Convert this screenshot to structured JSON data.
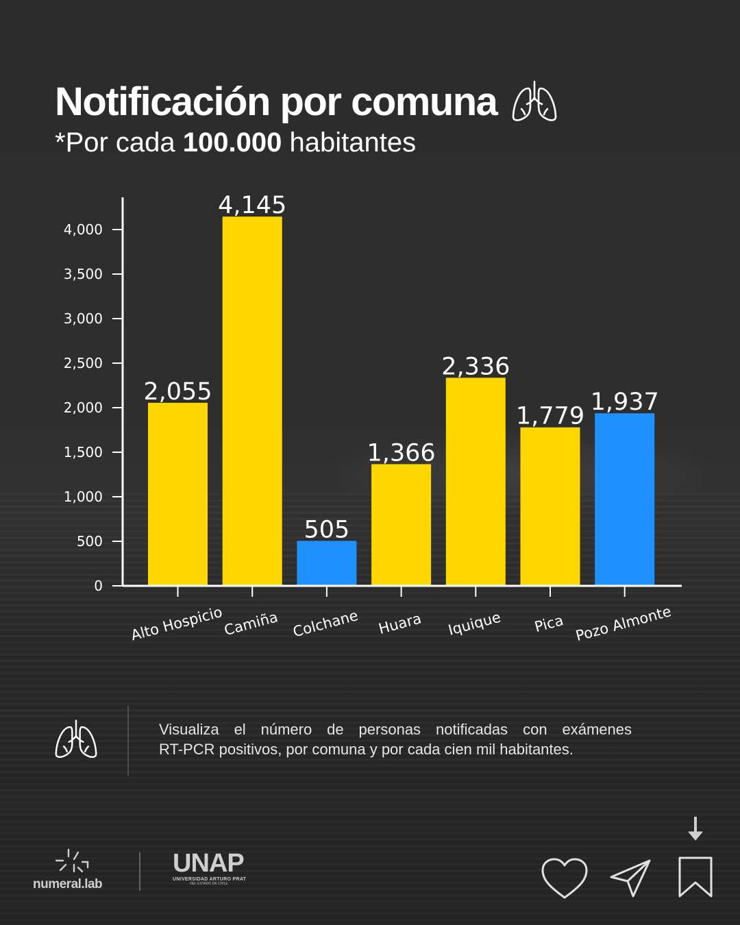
{
  "header": {
    "title": "Notificación por comuna",
    "subtitle_prefix": "*Por cada ",
    "subtitle_bold": "100.000",
    "subtitle_suffix": " habitantes"
  },
  "chart_data": {
    "type": "bar",
    "title": "Notificación por comuna",
    "subtitle": "*Por cada 100.000 habitantes",
    "xlabel": "",
    "ylabel": "",
    "categories": [
      "Alto Hospicio",
      "Camiña",
      "Colchane",
      "Huara",
      "Iquique",
      "Pica",
      "Pozo Almonte"
    ],
    "values": [
      2055,
      4145,
      505,
      1366,
      2336,
      1779,
      1937
    ],
    "value_labels": [
      "2,055",
      "4,145",
      "505",
      "1,366",
      "2,336",
      "1,779",
      "1,937"
    ],
    "bar_colors": [
      "#FFD700",
      "#FFD700",
      "#1E90FF",
      "#FFD700",
      "#FFD700",
      "#FFD700",
      "#1E90FF"
    ],
    "ylim": [
      0,
      4300
    ],
    "yticks": [
      0,
      500,
      1000,
      1500,
      2000,
      2500,
      3000,
      3500,
      4000
    ],
    "ytick_labels": [
      "0",
      "500",
      "1,000",
      "1,500",
      "2,000",
      "2,500",
      "3,000",
      "3,500",
      "4,000"
    ],
    "grid": false,
    "legend": "none"
  },
  "footer": {
    "description_line1": "Visualiza el número de personas notificadas con exámenes",
    "description_line2": "RT-PCR positivos, por comuna y por cada cien mil habitantes.",
    "logo_numeral": "numeral.lab",
    "logo_unap": "UNAP",
    "logo_unap_sub": "UNIVERSIDAD ARTURO PRAT",
    "logo_unap_sub2": "DEL ESTADO DE CHILE"
  },
  "icons": {
    "title_icon": "lungs-icon",
    "footer_icon": "lungs-icon",
    "actions": [
      "heart-icon",
      "send-icon",
      "bookmark-icon",
      "download-arrow-icon"
    ]
  },
  "colors": {
    "yellow_bar": "#FFD700",
    "blue_bar": "#1E90FF",
    "background": "#2b2b2b",
    "text": "#ffffff"
  }
}
